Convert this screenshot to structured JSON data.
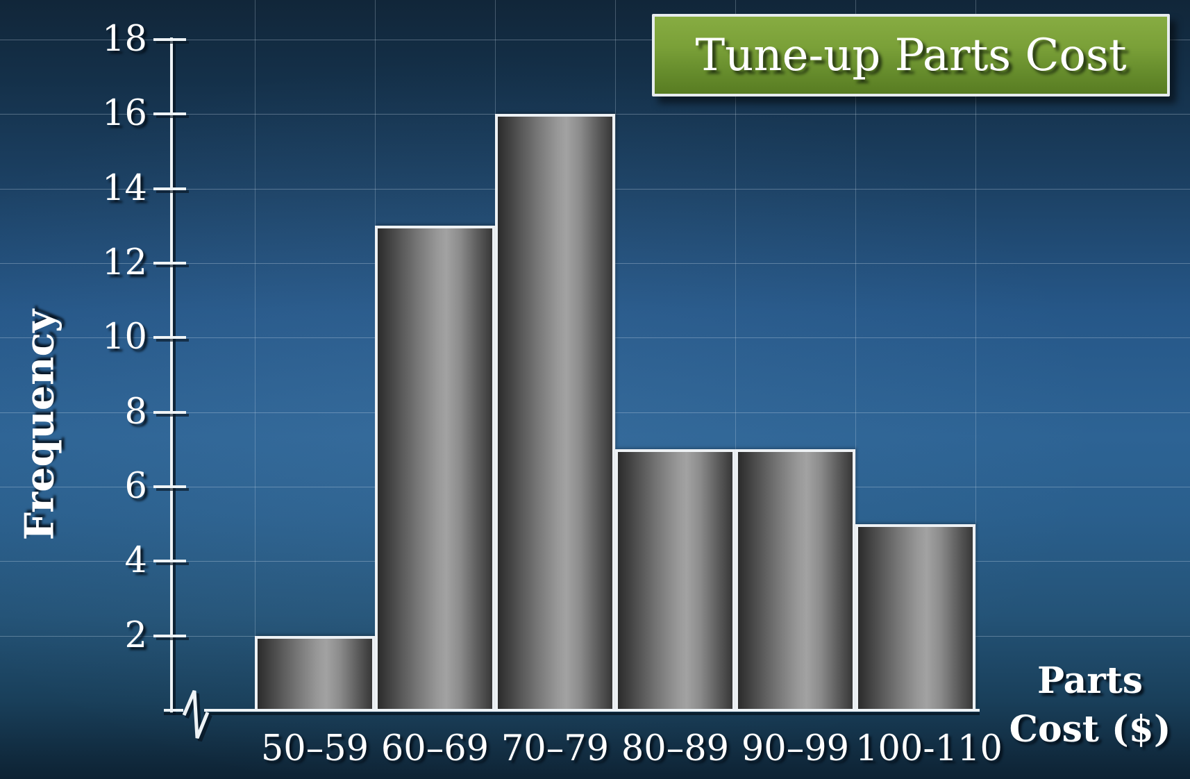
{
  "title": {
    "text": "Tune-up Parts Cost"
  },
  "y_axis": {
    "label": "Frequency",
    "tick_min": 2,
    "tick_max": 18,
    "tick_step": 2
  },
  "x_axis": {
    "title_line1": "Parts",
    "title_line2": "Cost ($)",
    "categories": [
      "50–59",
      "60–69",
      "70–79",
      "80–89",
      "90–99",
      "100-110"
    ]
  },
  "chart_data": {
    "type": "bar",
    "title": "Tune-up Parts Cost",
    "categories": [
      "50–59",
      "60–69",
      "70–79",
      "80–89",
      "90–99",
      "100-110"
    ],
    "values": [
      2,
      13,
      16,
      7,
      7,
      5
    ],
    "xlabel": "Parts Cost ($)",
    "ylabel": "Frequency",
    "ylim": [
      0,
      18
    ],
    "ytick_step": 2,
    "grid": true,
    "legend": "none",
    "axis_break_at_origin": true,
    "bar_gap": 0
  },
  "colors": {
    "background_top": "#112639",
    "background_mid": "#2d6394",
    "background_bottom": "#0d2233",
    "title_box_green_top": "#87ac42",
    "title_box_green_bottom": "#587c22",
    "title_box_border": "#e7ecee",
    "bar_gradient_dark": "#2b2b2b",
    "bar_gradient_light": "#a2a2a2",
    "bar_border": "#edf1f4",
    "axis_line": "#eef3f6",
    "axis_shadow": "#071624",
    "gridline": "#cddfec",
    "text": "#ffffff"
  }
}
